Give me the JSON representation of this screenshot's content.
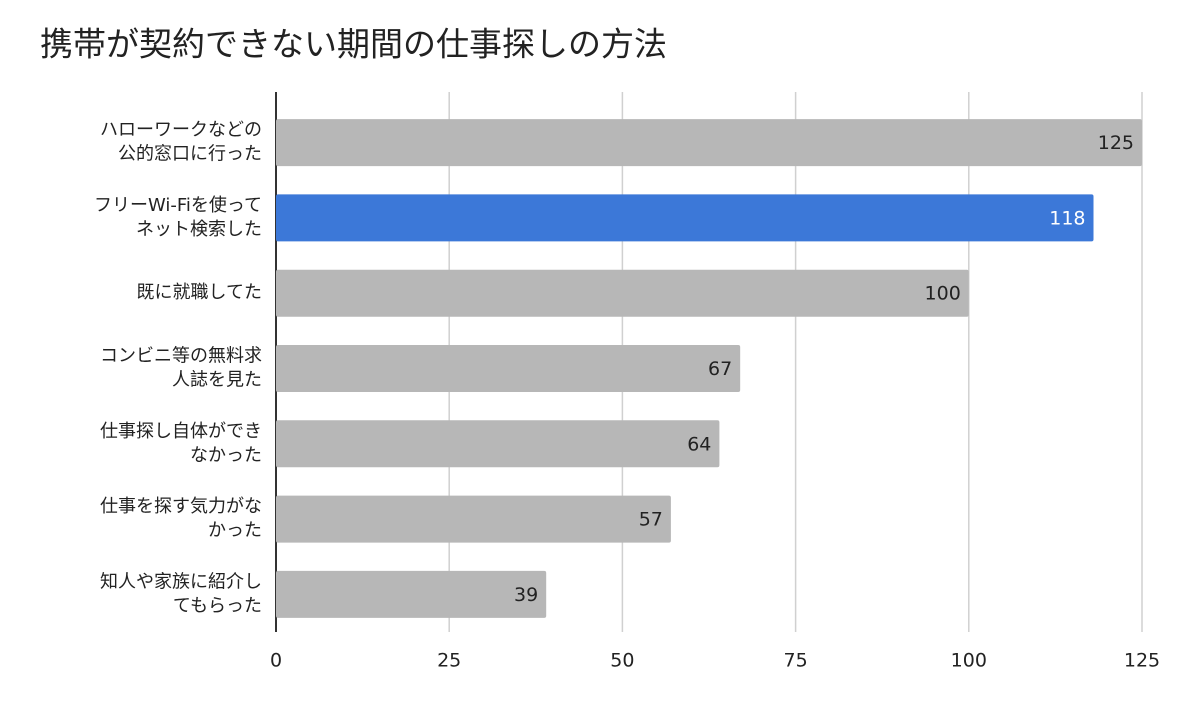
{
  "chart_data": {
    "type": "bar",
    "orientation": "horizontal",
    "title": "携帯が契約できない期間の仕事探しの方法",
    "categories": [
      "ハローワークなどの\n公的窓口に行った",
      "フリーWi-Fiを使って\nネット検索した",
      "既に就職してた",
      "コンビニ等の無料求\n人誌を見た",
      "仕事探し自体ができ\nなかった",
      "仕事を探す気力がな\nかった",
      "知人や家族に紹介し\nてもらった"
    ],
    "values": [
      125,
      118,
      100,
      67,
      64,
      57,
      39
    ],
    "colors": [
      "#b7b7b7",
      "#3c78d8",
      "#b7b7b7",
      "#b7b7b7",
      "#b7b7b7",
      "#b7b7b7",
      "#b7b7b7"
    ],
    "xlim": [
      0,
      125
    ],
    "xticks": [
      0,
      25,
      50,
      75,
      100,
      125
    ],
    "grid": true
  }
}
